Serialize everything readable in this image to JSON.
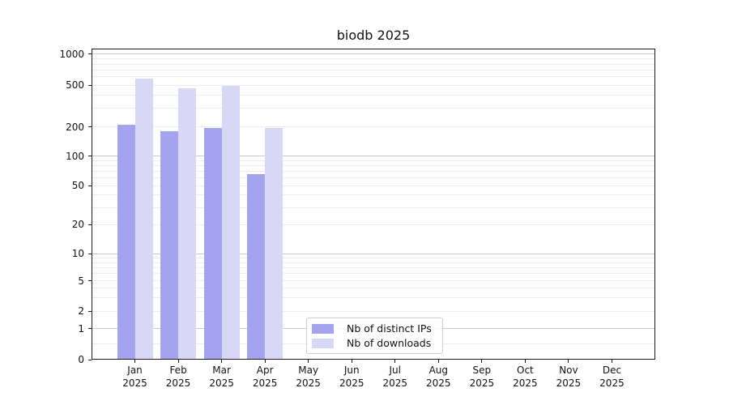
{
  "chart_data": {
    "type": "bar",
    "title": "biodb 2025",
    "categories": [
      {
        "line1": "Jan",
        "line2": "2025"
      },
      {
        "line1": "Feb",
        "line2": "2025"
      },
      {
        "line1": "Mar",
        "line2": "2025"
      },
      {
        "line1": "Apr",
        "line2": "2025"
      },
      {
        "line1": "May",
        "line2": "2025"
      },
      {
        "line1": "Jun",
        "line2": "2025"
      },
      {
        "line1": "Jul",
        "line2": "2025"
      },
      {
        "line1": "Aug",
        "line2": "2025"
      },
      {
        "line1": "Sep",
        "line2": "2025"
      },
      {
        "line1": "Oct",
        "line2": "2025"
      },
      {
        "line1": "Nov",
        "line2": "2025"
      },
      {
        "line1": "Dec",
        "line2": "2025"
      }
    ],
    "series": [
      {
        "name": "Nb of distinct IPs",
        "color": "#a4a4ee",
        "values": [
          209,
          180,
          195,
          66,
          null,
          null,
          null,
          null,
          null,
          null,
          null,
          null
        ]
      },
      {
        "name": "Nb of downloads",
        "color": "#d8d8f6",
        "values": [
          575,
          463,
          489,
          195,
          null,
          null,
          null,
          null,
          null,
          null,
          null,
          null
        ]
      }
    ],
    "y_axis": {
      "scale": "log-like (asinh), linear below 1",
      "tick_labels": [
        "0",
        "1",
        "2",
        "5",
        "10",
        "20",
        "50",
        "100",
        "200",
        "500",
        "1000"
      ],
      "range": [
        0,
        1180
      ],
      "grid": "major and minor gridlines on"
    },
    "legend": {
      "position": "lower center",
      "items": [
        {
          "label": "Nb of distinct IPs",
          "swatch_color": "#a4a4ee"
        },
        {
          "label": "Nb of downloads",
          "swatch_color": "#d8d8f6"
        }
      ]
    },
    "colors": {
      "background": "#ffffff",
      "grid_major": "#c9c9c9",
      "grid_minor": "#ececec",
      "spine": "#1a1a1a",
      "text": "#111111",
      "legend_border": "#cccccc"
    }
  }
}
